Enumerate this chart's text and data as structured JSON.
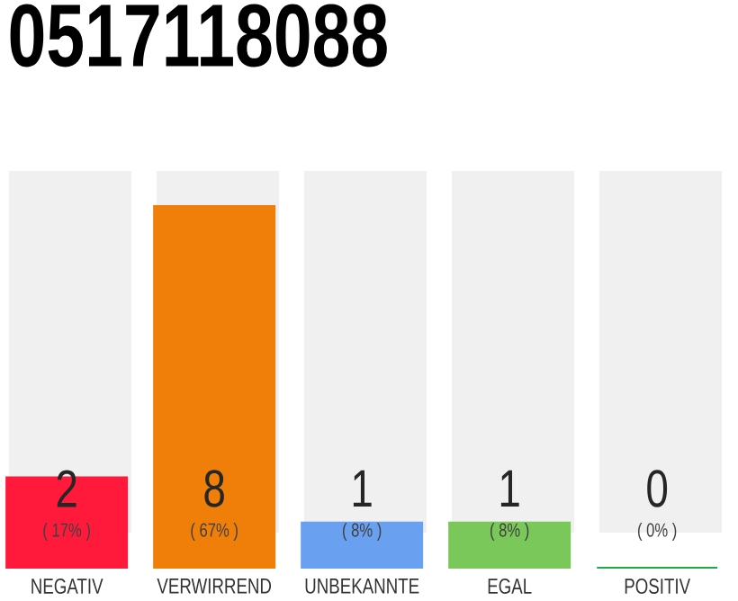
{
  "chart_data": {
    "type": "bar",
    "title": "0517118088",
    "categories": [
      "NEGATIV",
      "VERWIRREND",
      "UNBEKANNTE",
      "EGAL",
      "POSITIV"
    ],
    "values": [
      2,
      8,
      1,
      1,
      0
    ],
    "colors": [
      "#ff1a3c",
      "#f07f0a",
      "#6aa0f0",
      "#7ac85a",
      "#22aa44"
    ],
    "data_labels": true,
    "annotations": [
      "( 17% )",
      "( 67% )",
      "( 8% )",
      "( 8% )",
      "( 0% )"
    ],
    "grid": false
  }
}
